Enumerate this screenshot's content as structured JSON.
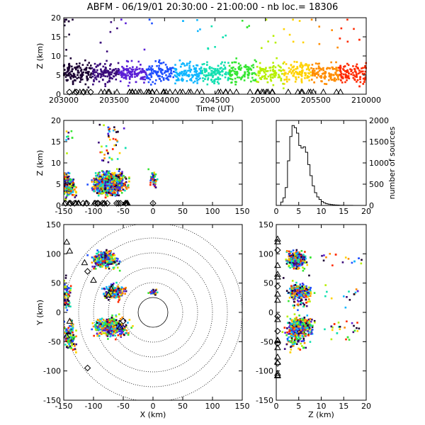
{
  "title": "ABFM - 06/19/01 20:30:00 - 21:00:00 - nb loc.=  18306",
  "colors": {
    "foreground": "#000000",
    "background": "#ffffff",
    "time_colormap": [
      "#1b0033",
      "#3a0a7a",
      "#5a1fd6",
      "#1f4fff",
      "#0fb6ff",
      "#10e0b0",
      "#35e632",
      "#b6ef00",
      "#ffd200",
      "#ff8c00",
      "#ff2a00"
    ]
  },
  "chart_data": [
    {
      "id": "time-height",
      "type": "scatter",
      "xlabel": "Time (UT)",
      "ylabel": "Z (km)",
      "xlim": [
        203000,
        210000
      ],
      "ylim": [
        0,
        20
      ],
      "xticks": [
        "203000",
        "203500",
        "204000",
        "204500",
        "205000",
        "205500",
        "210000"
      ],
      "yticks": [
        "0",
        "5",
        "10",
        "15",
        "20"
      ],
      "grid": false,
      "color_by": "time",
      "series": [
        {
          "x": [
            203000,
            210000
          ],
          "y": [
            0,
            13
          ],
          "note_range": true
        }
      ],
      "stations_triangle_count": 60,
      "stations_diamond_count": 4
    },
    {
      "id": "x-height",
      "type": "scatter",
      "xlabel": "",
      "ylabel": "Z (km)",
      "xlim": [
        -150,
        150
      ],
      "ylim": [
        0,
        20
      ],
      "xticks": [
        "-150",
        "-100",
        "-50",
        "0",
        "50",
        "100",
        "150"
      ],
      "yticks": [
        "0",
        "5",
        "10",
        "15",
        "20"
      ],
      "grid": false,
      "color_by": "time"
    },
    {
      "id": "height-histogram",
      "type": "line",
      "xlabel": "",
      "ylabel": "number of sources",
      "xlim": [
        0,
        20
      ],
      "ylim": [
        0,
        2000
      ],
      "xticks": [
        "0",
        "5",
        "10",
        "15",
        "20"
      ],
      "yticks": [
        "0",
        "500",
        "1000",
        "1500",
        "2000"
      ],
      "grid": false,
      "x": [
        0,
        0.5,
        1,
        1.5,
        2,
        2.5,
        3,
        3.5,
        4,
        4.5,
        5,
        5.5,
        6,
        6.5,
        7,
        7.5,
        8,
        8.5,
        9,
        9.5,
        10,
        10.5,
        11,
        11.5,
        12,
        12.5,
        13,
        13.5,
        14,
        15,
        16,
        17,
        18,
        19,
        20
      ],
      "values": [
        0,
        0,
        80,
        180,
        420,
        1050,
        1620,
        1880,
        1830,
        1700,
        1410,
        1350,
        1380,
        1250,
        960,
        700,
        460,
        300,
        200,
        140,
        90,
        60,
        40,
        30,
        20,
        15,
        10,
        8,
        5,
        3,
        2,
        1,
        1,
        0,
        0
      ]
    },
    {
      "id": "plan-view",
      "type": "scatter",
      "xlabel": "X (km)",
      "ylabel": "Y (km)",
      "xlim": [
        -150,
        150
      ],
      "ylim": [
        -150,
        150
      ],
      "xticks": [
        "-150",
        "-100",
        "-50",
        "0",
        "50",
        "100",
        "150"
      ],
      "yticks": [
        "-150",
        "-100",
        "-50",
        "0",
        "50",
        "100",
        "150"
      ],
      "range_rings_km": [
        25,
        50,
        75,
        100,
        125,
        150
      ],
      "grid": false,
      "color_by": "time"
    },
    {
      "id": "height-y",
      "type": "scatter",
      "xlabel": "Z (km)",
      "ylabel": "",
      "xlim": [
        0,
        20
      ],
      "ylim": [
        -150,
        150
      ],
      "xticks": [
        "0",
        "5",
        "10",
        "15",
        "20"
      ],
      "yticks": [
        "-150",
        "-100",
        "-50",
        "0",
        "50",
        "100",
        "150"
      ],
      "grid": false,
      "color_by": "time"
    }
  ]
}
